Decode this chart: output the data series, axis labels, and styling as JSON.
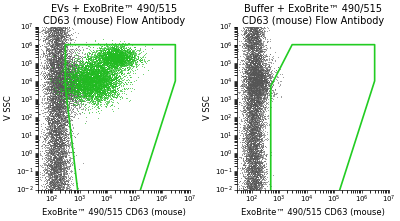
{
  "title_left": "EVs + ExoBrite™ 490/515\nCD63 (mouse) Flow Antibody",
  "title_right": "Buffer + ExoBrite™ 490/515\nCD63 (mouse) Flow Antibody",
  "xlabel": "ExoBrite™ 490/515 CD63 (mouse)",
  "ylabel": "V SSC",
  "ylabel_right": "V SSC",
  "xlim": [
    30,
    10000000.0
  ],
  "ylim": [
    0.01,
    10000000.0
  ],
  "bg_color": "#ffffff",
  "plot_bg": "#ffffff",
  "scatter_gray_color": "#555555",
  "scatter_green_color": "#22bb22",
  "gate_color": "#22cc22",
  "gate_lw": 1.2,
  "left_gate": [
    [
      1000,
      0.001
    ],
    [
      300,
      5000.0
    ],
    [
      300,
      1000000.0
    ],
    [
      100000.0,
      1000000.0
    ],
    [
      3000000.0,
      1000000.0
    ],
    [
      3000000.0,
      10000.0
    ],
    [
      100000.0,
      0.001
    ],
    [
      1000,
      0.001
    ]
  ],
  "right_gate": [
    [
      500,
      0.001
    ],
    [
      500,
      0.001
    ],
    [
      500,
      5000.0
    ],
    [
      3000,
      1000000.0
    ],
    [
      100000.0,
      1000000.0
    ],
    [
      3000000.0,
      1000000.0
    ],
    [
      3000000.0,
      10000.0
    ],
    [
      100000.0,
      0.001
    ],
    [
      500,
      0.001
    ]
  ],
  "title_fontsize": 7.0,
  "label_fontsize": 6.0,
  "tick_fontsize": 5.0
}
